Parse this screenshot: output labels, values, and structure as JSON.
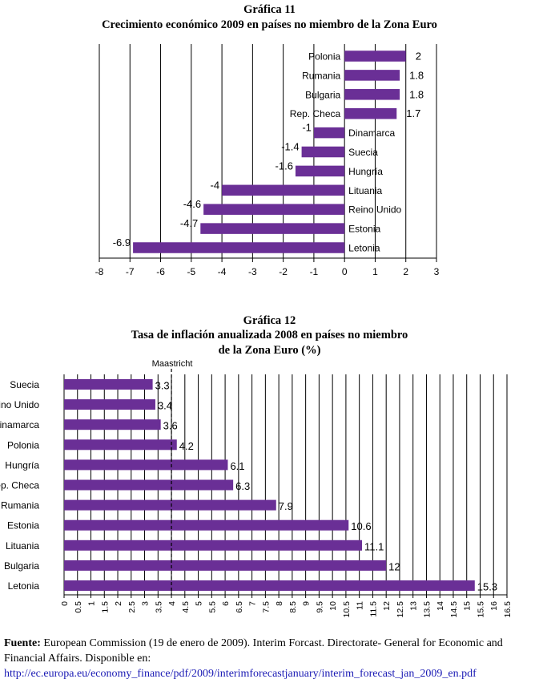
{
  "chart_data": [
    {
      "type": "bar",
      "orientation": "horizontal",
      "title": "Gráfica 11",
      "subtitle": "Crecimiento económico 2009 en países no miembro de la Zona Euro",
      "categories": [
        "Polonia",
        "Rumania",
        "Bulgaria",
        "Rep. Checa",
        "Dinamarca",
        "Suecia",
        "Hungría",
        "Lituania",
        "Reino Unido",
        "Estonia",
        "Letonia"
      ],
      "values": [
        2,
        1.8,
        1.8,
        1.7,
        -1,
        -1.4,
        -1.6,
        -4,
        -4.6,
        -4.7,
        -6.9
      ],
      "value_labels": [
        "2",
        "1.8",
        "1.8",
        "1.7",
        "-1",
        "-1.4",
        "-1.6",
        "-4",
        "-4.6",
        "-4.7",
        "-6.9"
      ],
      "xlim": [
        -8,
        3
      ],
      "ticks": [
        "-8",
        "-7",
        "-6",
        "-5",
        "-4",
        "-3",
        "-2",
        "-1",
        "0",
        "1",
        "2",
        "3"
      ],
      "grid": true,
      "bar_color": "#6a2f96"
    },
    {
      "type": "bar",
      "orientation": "horizontal",
      "title": "Gráfica 12",
      "subtitle_line1": "Tasa de inflación anualizada 2008 en países no miembro",
      "subtitle_line2": "de la Zona Euro (%)",
      "categories": [
        "Suecia",
        "Reino Unido",
        "Dinamarca",
        "Polonia",
        "Hungría",
        "Rep. Checa",
        "Rumania",
        "Estonia",
        "Lituania",
        "Bulgaria",
        "Letonia"
      ],
      "values": [
        3.3,
        3.4,
        3.6,
        4.2,
        6.1,
        6.3,
        7.9,
        10.6,
        11.1,
        12,
        15.3
      ],
      "value_labels": [
        "3.3",
        "3.4",
        "3.6",
        "4.2",
        "6.1",
        "6.3",
        "7.9",
        "10.6",
        "11.1",
        "12",
        "15.3"
      ],
      "xlim": [
        0,
        16.5
      ],
      "ticks": [
        "0",
        "0.5",
        "1",
        "1.5",
        "2",
        "2.5",
        "3",
        "3.5",
        "4",
        "4.5",
        "5",
        "5.5",
        "6",
        "6.5",
        "7",
        "7.5",
        "8",
        "8.5",
        "9",
        "9.5",
        "10",
        "10.5",
        "11",
        "11.5",
        "12",
        "12.5",
        "13",
        "13.5",
        "14",
        "14.5",
        "15",
        "15.5",
        "16",
        "16.5"
      ],
      "reference_line": {
        "label": "Maastricht",
        "value": 4
      },
      "grid": true,
      "bar_color": "#6a2f96"
    }
  ],
  "source": {
    "label": "Fuente:",
    "text": "European Commission (19 de enero de 2009). Interim Forcast. Directorate- General for Economic and Financial Affairs. Disponible en:",
    "link": "http://ec.europa.eu/economy_finance/pdf/2009/interimforecastjanuary/interim_forecast_jan_2009_en.pdf"
  }
}
